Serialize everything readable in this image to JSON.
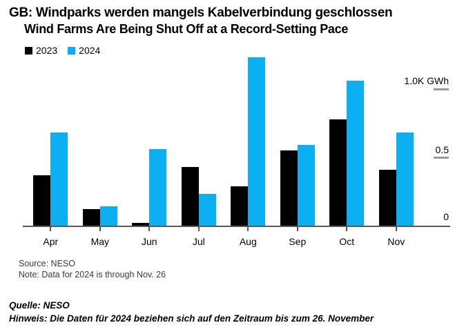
{
  "title_de": "GB: Windparks werden mangels Kabelverbindung geschlossen",
  "title_en": "Wind Farms Are Being Shut Off at a Record-Setting Pace",
  "legend": [
    {
      "label": "2023",
      "color": "#000000"
    },
    {
      "label": "2024",
      "color": "#0bb0f2"
    }
  ],
  "axis": {
    "y_top_label": "1.0K GWh",
    "y_mid_label": "0.5",
    "y_zero_label": "0"
  },
  "footer": {
    "source_en": "Source: NESO",
    "note_en": "Note: Data for 2024 is through Nov. 26",
    "source_de": "Quelle: NESO",
    "note_de": "Hinweis: Die Daten für 2024 beziehen sich auf den Zeitraum bis zum 26. November"
  },
  "colors": {
    "bar_2023": "#000000",
    "bar_2024": "#0bb0f2",
    "axis_line": "#5a5a5a",
    "tick_dash": "#999999"
  },
  "chart_data": {
    "type": "bar",
    "categories": [
      "Apr",
      "May",
      "Jun",
      "Jul",
      "Aug",
      "Sep",
      "Oct",
      "Nov"
    ],
    "series": [
      {
        "name": "2023",
        "color": "#000000",
        "values": [
          0.37,
          0.12,
          0.02,
          0.43,
          0.29,
          0.55,
          0.78,
          0.41
        ]
      },
      {
        "name": "2024",
        "color": "#0bb0f2",
        "values": [
          0.68,
          0.14,
          0.56,
          0.23,
          1.23,
          0.59,
          1.06,
          0.68
        ]
      }
    ],
    "unit": "K GWh",
    "y_ticks": [
      0,
      0.5,
      1.0
    ],
    "ylim": [
      0,
      1.25
    ],
    "grid": false,
    "legend_position": "top-left",
    "title": "GB: Windparks werden mangels Kabelverbindung geschlossen",
    "subtitle": "Wind Farms Are Being Shut Off at a Record-Setting Pace"
  }
}
